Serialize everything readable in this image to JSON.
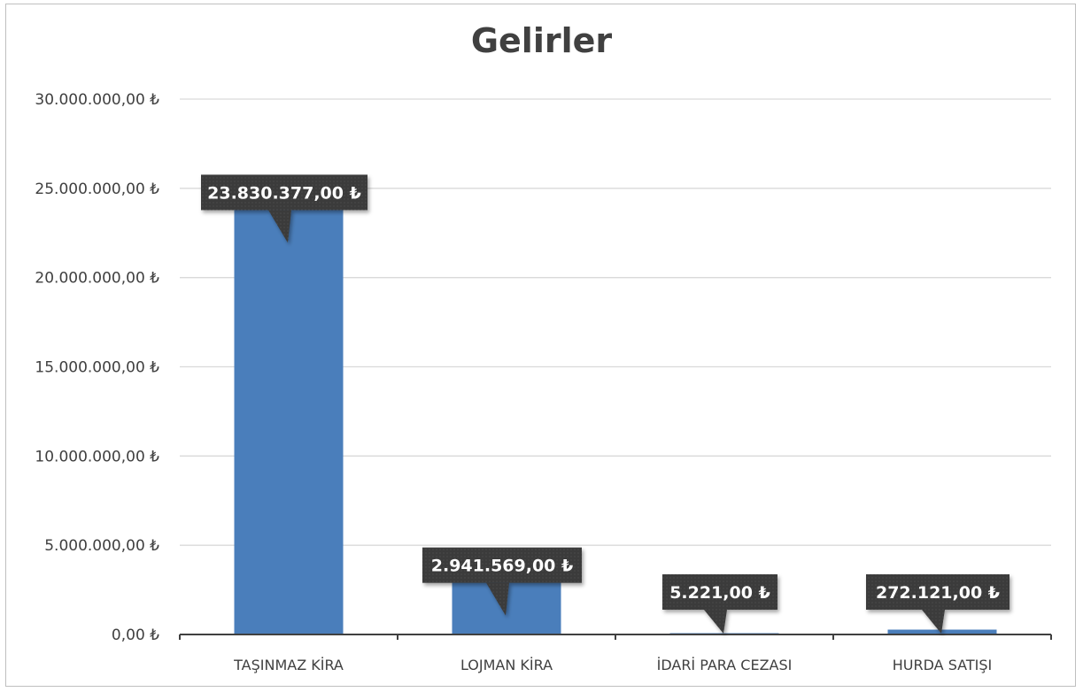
{
  "chart_data": {
    "type": "bar",
    "title": "Gelirler",
    "categories": [
      "TAŞINMAZ KİRA",
      "LOJMAN KİRA",
      "İDARİ PARA CEZASI",
      "HURDA SATIŞI"
    ],
    "values": [
      23830377.0,
      2941569.0,
      5221.0,
      272121.0
    ],
    "data_labels": [
      "23.830.377,00 ₺",
      "2.941.569,00 ₺",
      "5.221,00 ₺",
      "272.121,00 ₺"
    ],
    "y_ticks": [
      0,
      5000000,
      10000000,
      15000000,
      20000000,
      25000000,
      30000000
    ],
    "y_tick_labels": [
      "0,00 ₺",
      "5.000.000,00 ₺",
      "10.000.000,00 ₺",
      "15.000.000,00 ₺",
      "20.000.000,00 ₺",
      "25.000.000,00 ₺",
      "30.000.000,00 ₺"
    ],
    "ylim": [
      0,
      30000000
    ],
    "xlabel": "",
    "ylabel": "",
    "grid": true,
    "bar_color": "#4a7ebb",
    "label_box_color": "#3a3a3a",
    "grid_color": "#d9d9d9",
    "axis_color": "#404040"
  }
}
